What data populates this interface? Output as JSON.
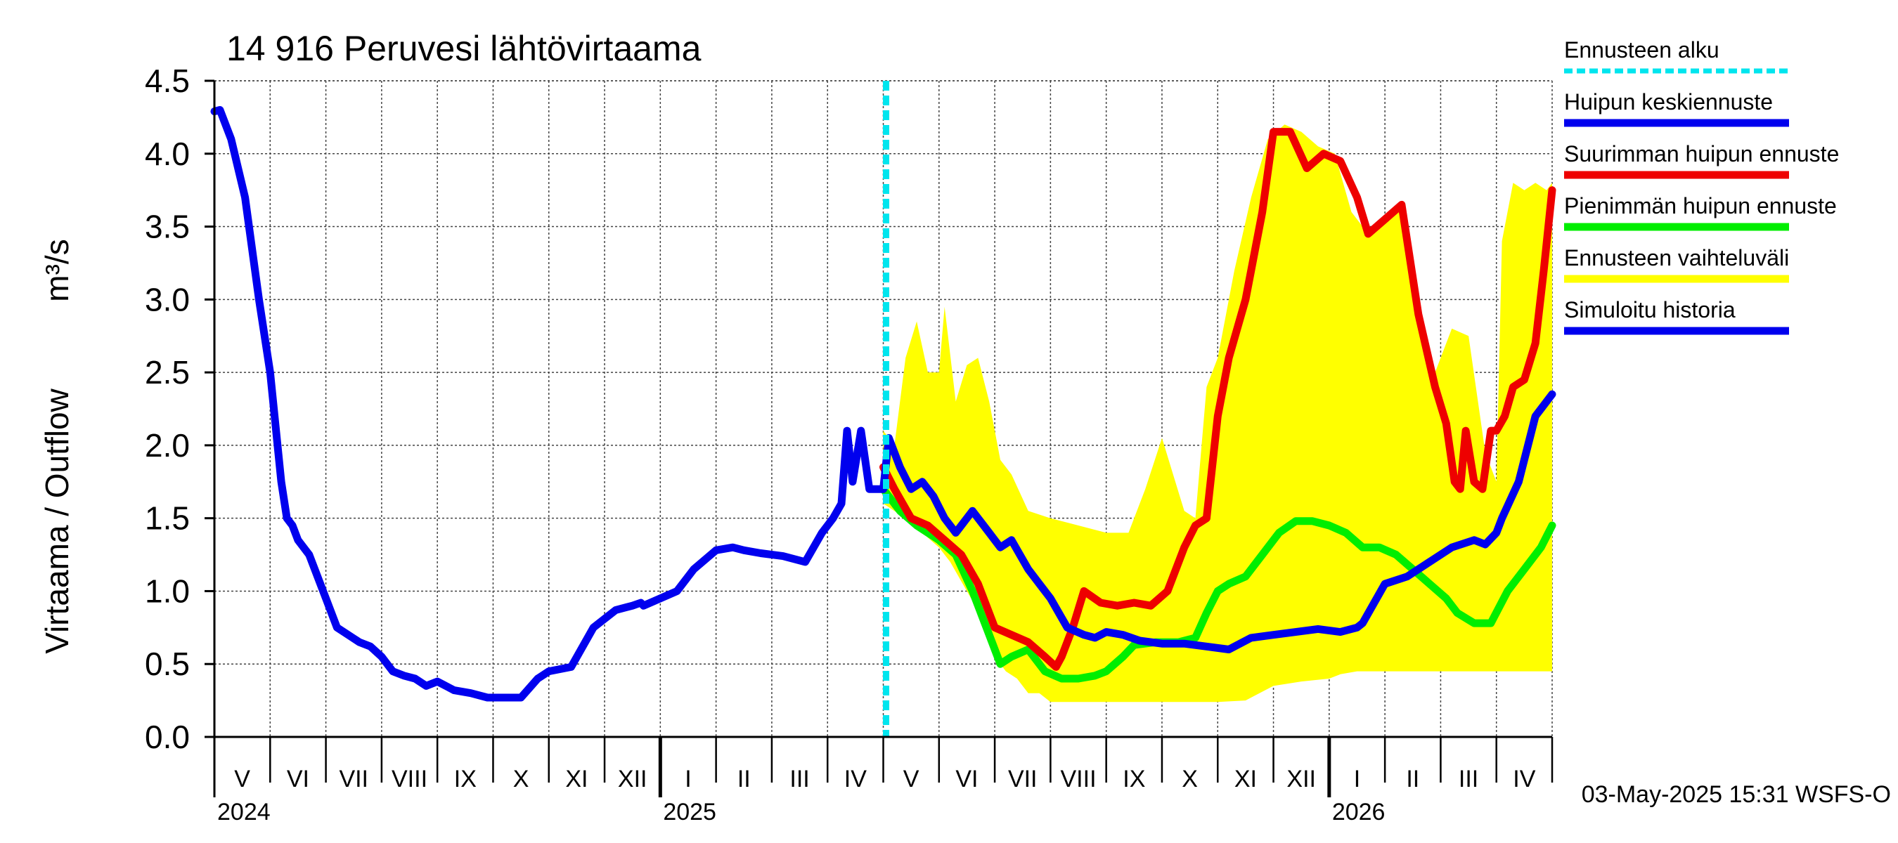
{
  "chart_data": {
    "type": "line",
    "title": "14 916 Peruvesi lähtövirtaama",
    "ylabel_main": "Virtaama / Outflow",
    "ylabel_unit": "m³/s",
    "xlabel": "",
    "ylim": [
      0,
      4.5
    ],
    "yticks": [
      "0.0",
      "0.5",
      "1.0",
      "1.5",
      "2.0",
      "2.5",
      "3.0",
      "3.5",
      "4.0",
      "4.5"
    ],
    "grid": true,
    "legend_position": "right",
    "footer": "03-May-2025 15:31 WSFS-O",
    "month_labels": [
      "V",
      "VI",
      "VII",
      "VIII",
      "IX",
      "X",
      "XI",
      "XII",
      "I",
      "II",
      "III",
      "IV",
      "V",
      "VI",
      "VII",
      "VIII",
      "IX",
      "X",
      "XI",
      "XII",
      "I",
      "II",
      "III",
      "IV"
    ],
    "year_labels": [
      {
        "text": "2024",
        "month_index": 0
      },
      {
        "text": "2025",
        "month_index": 8
      },
      {
        "text": "2026",
        "month_index": 20
      }
    ],
    "forecast_start_month": 12.0,
    "legend": [
      {
        "label": "Ennusteen alku",
        "color": "#00e5ee",
        "dashed": true
      },
      {
        "label": "Huipun keskiennuste",
        "color": "#0000ee"
      },
      {
        "label": "Suurimman huipun ennuste",
        "color": "#ee0000"
      },
      {
        "label": "Pienimmän huipun ennuste",
        "color": "#00ee00"
      },
      {
        "label": "Ennusteen vaihteluväli",
        "color": "#ffff00"
      },
      {
        "label": "Simuloitu historia",
        "color": "#0000ee"
      }
    ],
    "series": [
      {
        "name": "Simuloitu historia",
        "color": "#0000ee",
        "x": [
          0,
          0.1,
          0.3,
          0.55,
          0.8,
          1.0,
          1.2,
          1.3,
          1.4,
          1.5,
          1.7,
          2.0,
          2.2,
          2.4,
          2.6,
          2.8,
          3.0,
          3.2,
          3.4,
          3.6,
          3.8,
          4.0,
          4.3,
          4.6,
          4.9,
          5.2,
          5.5,
          5.8,
          6.0,
          6.4,
          6.8,
          7.2,
          7.5,
          7.65,
          7.7,
          8.0,
          8.3,
          8.6,
          9.0,
          9.3,
          9.5,
          9.8,
          10.2,
          10.6,
          10.9,
          11.1,
          11.25,
          11.35,
          11.45,
          11.6,
          11.75,
          12.0
        ],
        "y": [
          4.29,
          4.3,
          4.1,
          3.7,
          3.0,
          2.5,
          1.75,
          1.5,
          1.45,
          1.35,
          1.25,
          0.95,
          0.75,
          0.7,
          0.65,
          0.62,
          0.55,
          0.45,
          0.42,
          0.4,
          0.35,
          0.38,
          0.32,
          0.3,
          0.27,
          0.27,
          0.27,
          0.4,
          0.45,
          0.48,
          0.75,
          0.87,
          0.9,
          0.92,
          0.9,
          0.95,
          1.0,
          1.15,
          1.28,
          1.3,
          1.28,
          1.26,
          1.24,
          1.2,
          1.4,
          1.5,
          1.6,
          2.1,
          1.75,
          2.1,
          1.7,
          1.7
        ]
      },
      {
        "name": "Huipun keskiennuste",
        "color": "#0000ee",
        "x": [
          12.0,
          12.1,
          12.3,
          12.5,
          12.7,
          12.9,
          13.1,
          13.3,
          13.6,
          13.9,
          14.1,
          14.3,
          14.6,
          14.8,
          15.0,
          15.3,
          15.6,
          15.8,
          16.0,
          16.3,
          16.6,
          17.0,
          17.4,
          17.8,
          18.2,
          18.6,
          19.0,
          19.4,
          19.8,
          20.2,
          20.5,
          20.6,
          21.0,
          21.4,
          21.8,
          22.2,
          22.6,
          22.8,
          23.0,
          23.1,
          23.4,
          23.7,
          24.0
        ],
        "y": [
          1.7,
          2.05,
          1.85,
          1.7,
          1.75,
          1.65,
          1.5,
          1.4,
          1.55,
          1.4,
          1.3,
          1.35,
          1.15,
          1.05,
          0.95,
          0.75,
          0.7,
          0.68,
          0.72,
          0.7,
          0.66,
          0.64,
          0.64,
          0.62,
          0.6,
          0.68,
          0.7,
          0.72,
          0.74,
          0.72,
          0.75,
          0.78,
          1.05,
          1.1,
          1.2,
          1.3,
          1.35,
          1.32,
          1.4,
          1.5,
          1.75,
          2.2,
          2.35
        ]
      },
      {
        "name": "Suurimman huipun ennuste",
        "color": "#ee0000",
        "x": [
          12.0,
          12.2,
          12.5,
          12.8,
          13.1,
          13.4,
          13.7,
          14.0,
          14.3,
          14.6,
          14.9,
          15.1,
          15.2,
          15.4,
          15.6,
          15.9,
          16.2,
          16.5,
          16.8,
          17.1,
          17.4,
          17.6,
          17.8,
          18.0,
          18.2,
          18.5,
          18.8,
          19.0,
          19.3,
          19.6,
          19.9,
          20.2,
          20.5,
          20.7,
          21.0,
          21.3,
          21.6,
          21.9,
          22.1,
          22.25,
          22.35,
          22.45,
          22.6,
          22.75,
          22.9,
          23.0,
          23.15,
          23.3,
          23.5,
          23.7,
          23.85,
          24.0
        ],
        "y": [
          1.85,
          1.7,
          1.5,
          1.45,
          1.35,
          1.25,
          1.05,
          0.75,
          0.7,
          0.65,
          0.55,
          0.48,
          0.55,
          0.75,
          1.0,
          0.92,
          0.9,
          0.92,
          0.9,
          1.0,
          1.3,
          1.45,
          1.5,
          2.2,
          2.6,
          3.0,
          3.6,
          4.15,
          4.15,
          3.9,
          4.0,
          3.95,
          3.7,
          3.45,
          3.55,
          3.65,
          2.9,
          2.4,
          2.15,
          1.75,
          1.7,
          2.1,
          1.75,
          1.7,
          2.1,
          2.1,
          2.2,
          2.4,
          2.45,
          2.7,
          3.2,
          3.75
        ]
      },
      {
        "name": "Pienimmän huipun ennuste",
        "color": "#00ee00",
        "x": [
          12.0,
          12.3,
          12.6,
          13.0,
          13.3,
          13.6,
          13.9,
          14.1,
          14.3,
          14.6,
          14.9,
          15.2,
          15.5,
          15.8,
          16.0,
          16.3,
          16.5,
          16.9,
          17.3,
          17.6,
          17.8,
          18.0,
          18.2,
          18.5,
          18.8,
          19.1,
          19.4,
          19.7,
          20.0,
          20.3,
          20.6,
          20.9,
          21.2,
          21.5,
          21.8,
          22.1,
          22.3,
          22.6,
          22.9,
          23.2,
          23.5,
          23.8,
          24.0
        ],
        "y": [
          1.7,
          1.55,
          1.45,
          1.35,
          1.25,
          1.0,
          0.7,
          0.5,
          0.55,
          0.6,
          0.45,
          0.4,
          0.4,
          0.42,
          0.45,
          0.55,
          0.63,
          0.65,
          0.65,
          0.68,
          0.85,
          1.0,
          1.05,
          1.1,
          1.25,
          1.4,
          1.48,
          1.48,
          1.45,
          1.4,
          1.3,
          1.3,
          1.25,
          1.15,
          1.05,
          0.95,
          0.85,
          0.78,
          0.78,
          1.0,
          1.15,
          1.3,
          1.45
        ]
      },
      {
        "name": "Ennusteen vaihteluväli",
        "color": "#ffff00",
        "upper_x": [
          12.0,
          12.2,
          12.4,
          12.6,
          12.8,
          13.0,
          13.1,
          13.3,
          13.5,
          13.7,
          13.9,
          14.1,
          14.3,
          14.6,
          15.0,
          15.5,
          16.0,
          16.4,
          16.7,
          17.0,
          17.2,
          17.4,
          17.6,
          17.8,
          18.0,
          18.3,
          18.6,
          18.9,
          19.2,
          19.5,
          19.8,
          20.1,
          20.4,
          20.7,
          21.0,
          21.3,
          21.6,
          21.9,
          22.2,
          22.5,
          22.8,
          23.0,
          23.1,
          23.3,
          23.5,
          23.7,
          23.9,
          24.0
        ],
        "upper_y": [
          2.1,
          2.0,
          2.6,
          2.85,
          2.5,
          2.5,
          2.95,
          2.3,
          2.55,
          2.6,
          2.3,
          1.9,
          1.8,
          1.55,
          1.5,
          1.45,
          1.4,
          1.4,
          1.7,
          2.05,
          1.8,
          1.55,
          1.5,
          2.4,
          2.6,
          3.2,
          3.7,
          4.1,
          4.2,
          4.15,
          4.05,
          4.0,
          3.6,
          3.45,
          3.55,
          3.65,
          2.9,
          2.5,
          2.8,
          2.75,
          1.95,
          1.75,
          3.4,
          3.8,
          3.75,
          3.8,
          3.75,
          3.8
        ],
        "lower_x": [
          24.0,
          23.5,
          23.0,
          22.5,
          22.0,
          21.5,
          21.0,
          20.5,
          20.2,
          20.0,
          19.5,
          19.0,
          18.5,
          18.0,
          17.5,
          17.0,
          16.5,
          16.0,
          15.5,
          15.0,
          14.8,
          14.6,
          14.4,
          14.2,
          14.0,
          13.8,
          13.5,
          13.2,
          13.0,
          12.7,
          12.4,
          12.0
        ],
        "lower_y": [
          0.45,
          0.45,
          0.45,
          0.45,
          0.45,
          0.45,
          0.45,
          0.45,
          0.43,
          0.4,
          0.38,
          0.35,
          0.25,
          0.24,
          0.24,
          0.24,
          0.24,
          0.24,
          0.24,
          0.24,
          0.3,
          0.3,
          0.4,
          0.45,
          0.55,
          0.8,
          1.0,
          1.2,
          1.3,
          1.4,
          1.5,
          1.6
        ]
      }
    ]
  }
}
